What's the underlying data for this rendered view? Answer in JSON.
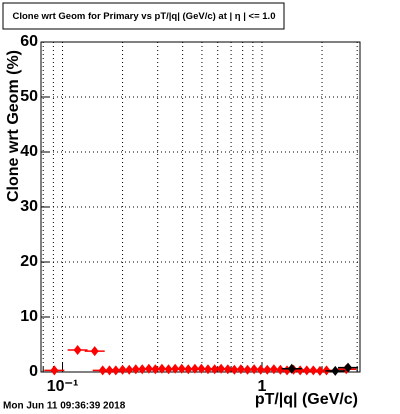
{
  "chart_data": {
    "type": "scatter",
    "title": "Clone wrt Geom for Primary vs pT/|q| (GeV/c) at | η | <= 1.0",
    "x_label": "pT/|q| (GeV/c)",
    "y_label": "Clone wrt Geom (%)",
    "timestamp": "Mon Jun 11 09:36:39 2018",
    "xlog": true,
    "grid": true,
    "xlim": [
      0.078,
      3.1
    ],
    "ylim": [
      0,
      60
    ],
    "xticks": [
      {
        "value": 0.1,
        "label": "10⁻¹"
      },
      1
    ],
    "xminor_ticks": [
      0.08,
      0.09,
      0.2,
      0.3,
      0.4,
      0.5,
      0.6,
      0.7,
      0.8,
      0.9,
      2,
      3
    ],
    "yticks": [
      0,
      10,
      20,
      30,
      40,
      50,
      60
    ],
    "series": [
      {
        "color": "#000000",
        "x": [
          1.41,
          2.33,
          2.7
        ],
        "values": [
          0.6,
          0.2,
          0.8
        ]
      },
      {
        "color": "#ff0000",
        "x": [
          0.091,
          0.119,
          0.145,
          0.159,
          0.172,
          0.185,
          0.2,
          0.216,
          0.233,
          0.251,
          0.271,
          0.292,
          0.315,
          0.34,
          0.367,
          0.396,
          0.427,
          0.461,
          0.497,
          0.536,
          0.579,
          0.624,
          0.674,
          0.727,
          0.784,
          0.846,
          0.913,
          0.985,
          1.063,
          1.147,
          1.237,
          1.335,
          1.44,
          1.554,
          1.677,
          1.809,
          1.952,
          2.106,
          2.645
        ],
        "values": [
          0.3,
          4.0,
          3.8,
          0.3,
          0.3,
          0.3,
          0.4,
          0.4,
          0.5,
          0.5,
          0.6,
          0.5,
          0.6,
          0.5,
          0.6,
          0.6,
          0.5,
          0.6,
          0.6,
          0.5,
          0.5,
          0.6,
          0.5,
          0.4,
          0.5,
          0.4,
          0.5,
          0.4,
          0.4,
          0.5,
          0.4,
          0.3,
          0.4,
          0.3,
          0.3,
          0.3,
          0.2,
          0.3,
          0.5
        ]
      }
    ]
  }
}
